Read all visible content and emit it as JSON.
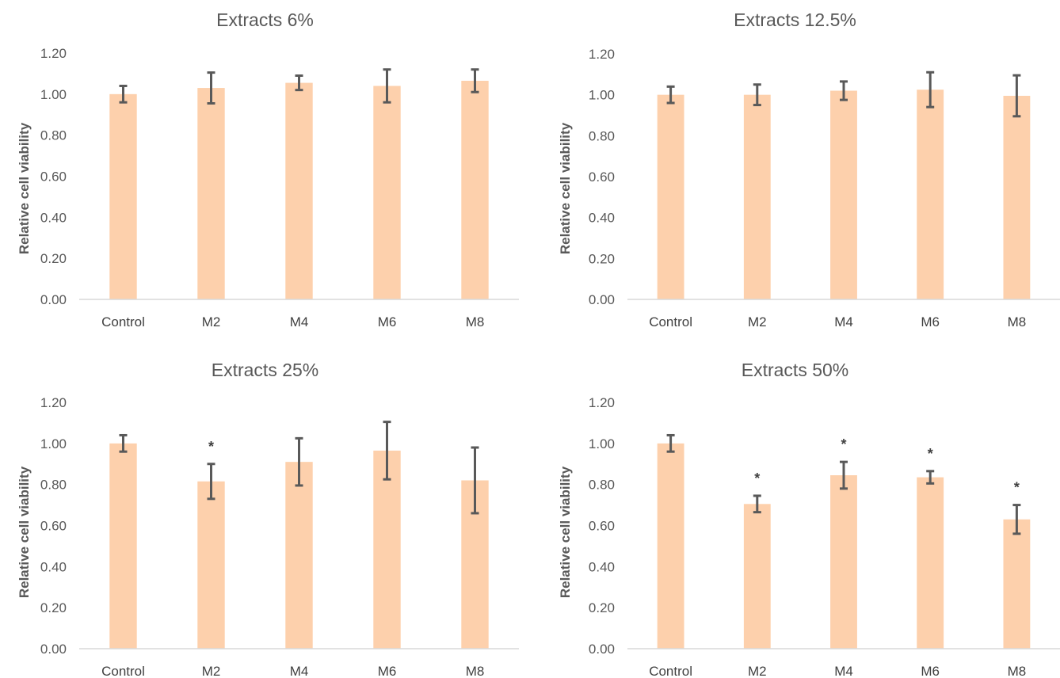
{
  "chart_data": [
    {
      "type": "bar",
      "title": "Extracts 6%",
      "ylabel": "Relative cell viability",
      "xlabel": "",
      "categories": [
        "Control",
        "M2",
        "M4",
        "M6",
        "M8"
      ],
      "values": [
        1.0,
        1.03,
        1.055,
        1.04,
        1.065
      ],
      "error": [
        0.04,
        0.075,
        0.035,
        0.08,
        0.055
      ],
      "significance": [
        "",
        "",
        "",
        "",
        ""
      ],
      "ylim": [
        0,
        1.2
      ],
      "yticks": [
        "0.00",
        "0.20",
        "0.40",
        "0.60",
        "0.80",
        "1.00",
        "1.20"
      ],
      "grid": false,
      "bar_color": "#fdd0ac",
      "error_color": "#595959"
    },
    {
      "type": "bar",
      "title": "Extracts 12.5%",
      "ylabel": "Relative cell viability",
      "xlabel": "",
      "categories": [
        "Control",
        "M2",
        "M4",
        "M6",
        "M8"
      ],
      "values": [
        1.0,
        1.0,
        1.02,
        1.025,
        0.995
      ],
      "error": [
        0.04,
        0.05,
        0.045,
        0.085,
        0.1
      ],
      "significance": [
        "",
        "",
        "",
        "",
        ""
      ],
      "ylim": [
        0,
        1.2
      ],
      "yticks": [
        "0.00",
        "0.20",
        "0.40",
        "0.60",
        "0.80",
        "1.00",
        "1.20"
      ],
      "grid": false,
      "bar_color": "#fdd0ac",
      "error_color": "#595959"
    },
    {
      "type": "bar",
      "title": "Extracts 25%",
      "ylabel": "Relative cell viability",
      "xlabel": "",
      "categories": [
        "Control",
        "M2",
        "M4",
        "M6",
        "M8"
      ],
      "values": [
        1.0,
        0.815,
        0.91,
        0.965,
        0.82
      ],
      "error": [
        0.04,
        0.085,
        0.115,
        0.14,
        0.16
      ],
      "significance": [
        "",
        "*",
        "",
        "",
        ""
      ],
      "ylim": [
        0,
        1.2
      ],
      "yticks": [
        "0.00",
        "0.20",
        "0.40",
        "0.60",
        "0.80",
        "1.00",
        "1.20"
      ],
      "grid": false,
      "bar_color": "#fdd0ac",
      "error_color": "#595959"
    },
    {
      "type": "bar",
      "title": "Extracts 50%",
      "ylabel": "Relative cell viability",
      "xlabel": "",
      "categories": [
        "Control",
        "M2",
        "M4",
        "M6",
        "M8"
      ],
      "values": [
        1.0,
        0.705,
        0.845,
        0.835,
        0.63
      ],
      "error": [
        0.04,
        0.04,
        0.065,
        0.03,
        0.07
      ],
      "significance": [
        "",
        "*",
        "*",
        "*",
        "*"
      ],
      "ylim": [
        0,
        1.2
      ],
      "yticks": [
        "0.00",
        "0.20",
        "0.40",
        "0.60",
        "0.80",
        "1.00",
        "1.20"
      ],
      "grid": false,
      "bar_color": "#fdd0ac",
      "error_color": "#595959"
    }
  ]
}
